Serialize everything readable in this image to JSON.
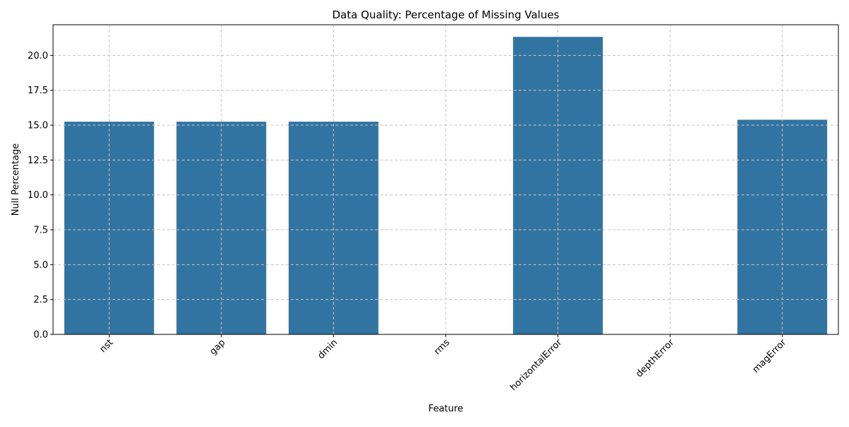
{
  "chart_data": {
    "type": "bar",
    "title": "Data Quality: Percentage of Missing Values",
    "xlabel": "Feature",
    "ylabel": "Null Percentage",
    "categories": [
      "nst",
      "gap",
      "dmin",
      "rms",
      "horizontalError",
      "depthError",
      "magError"
    ],
    "values": [
      15.25,
      15.25,
      15.25,
      0,
      21.33,
      0,
      15.39
    ],
    "ylim": [
      0,
      22.2
    ],
    "yticks": [
      "0.0",
      "2.5",
      "5.0",
      "7.5",
      "10.0",
      "12.5",
      "15.0",
      "17.5",
      "20.0"
    ],
    "xtick_rotation_deg": 45,
    "grid": true,
    "bar_color": "#3274a1",
    "grid_color": "#c4c4c4"
  }
}
